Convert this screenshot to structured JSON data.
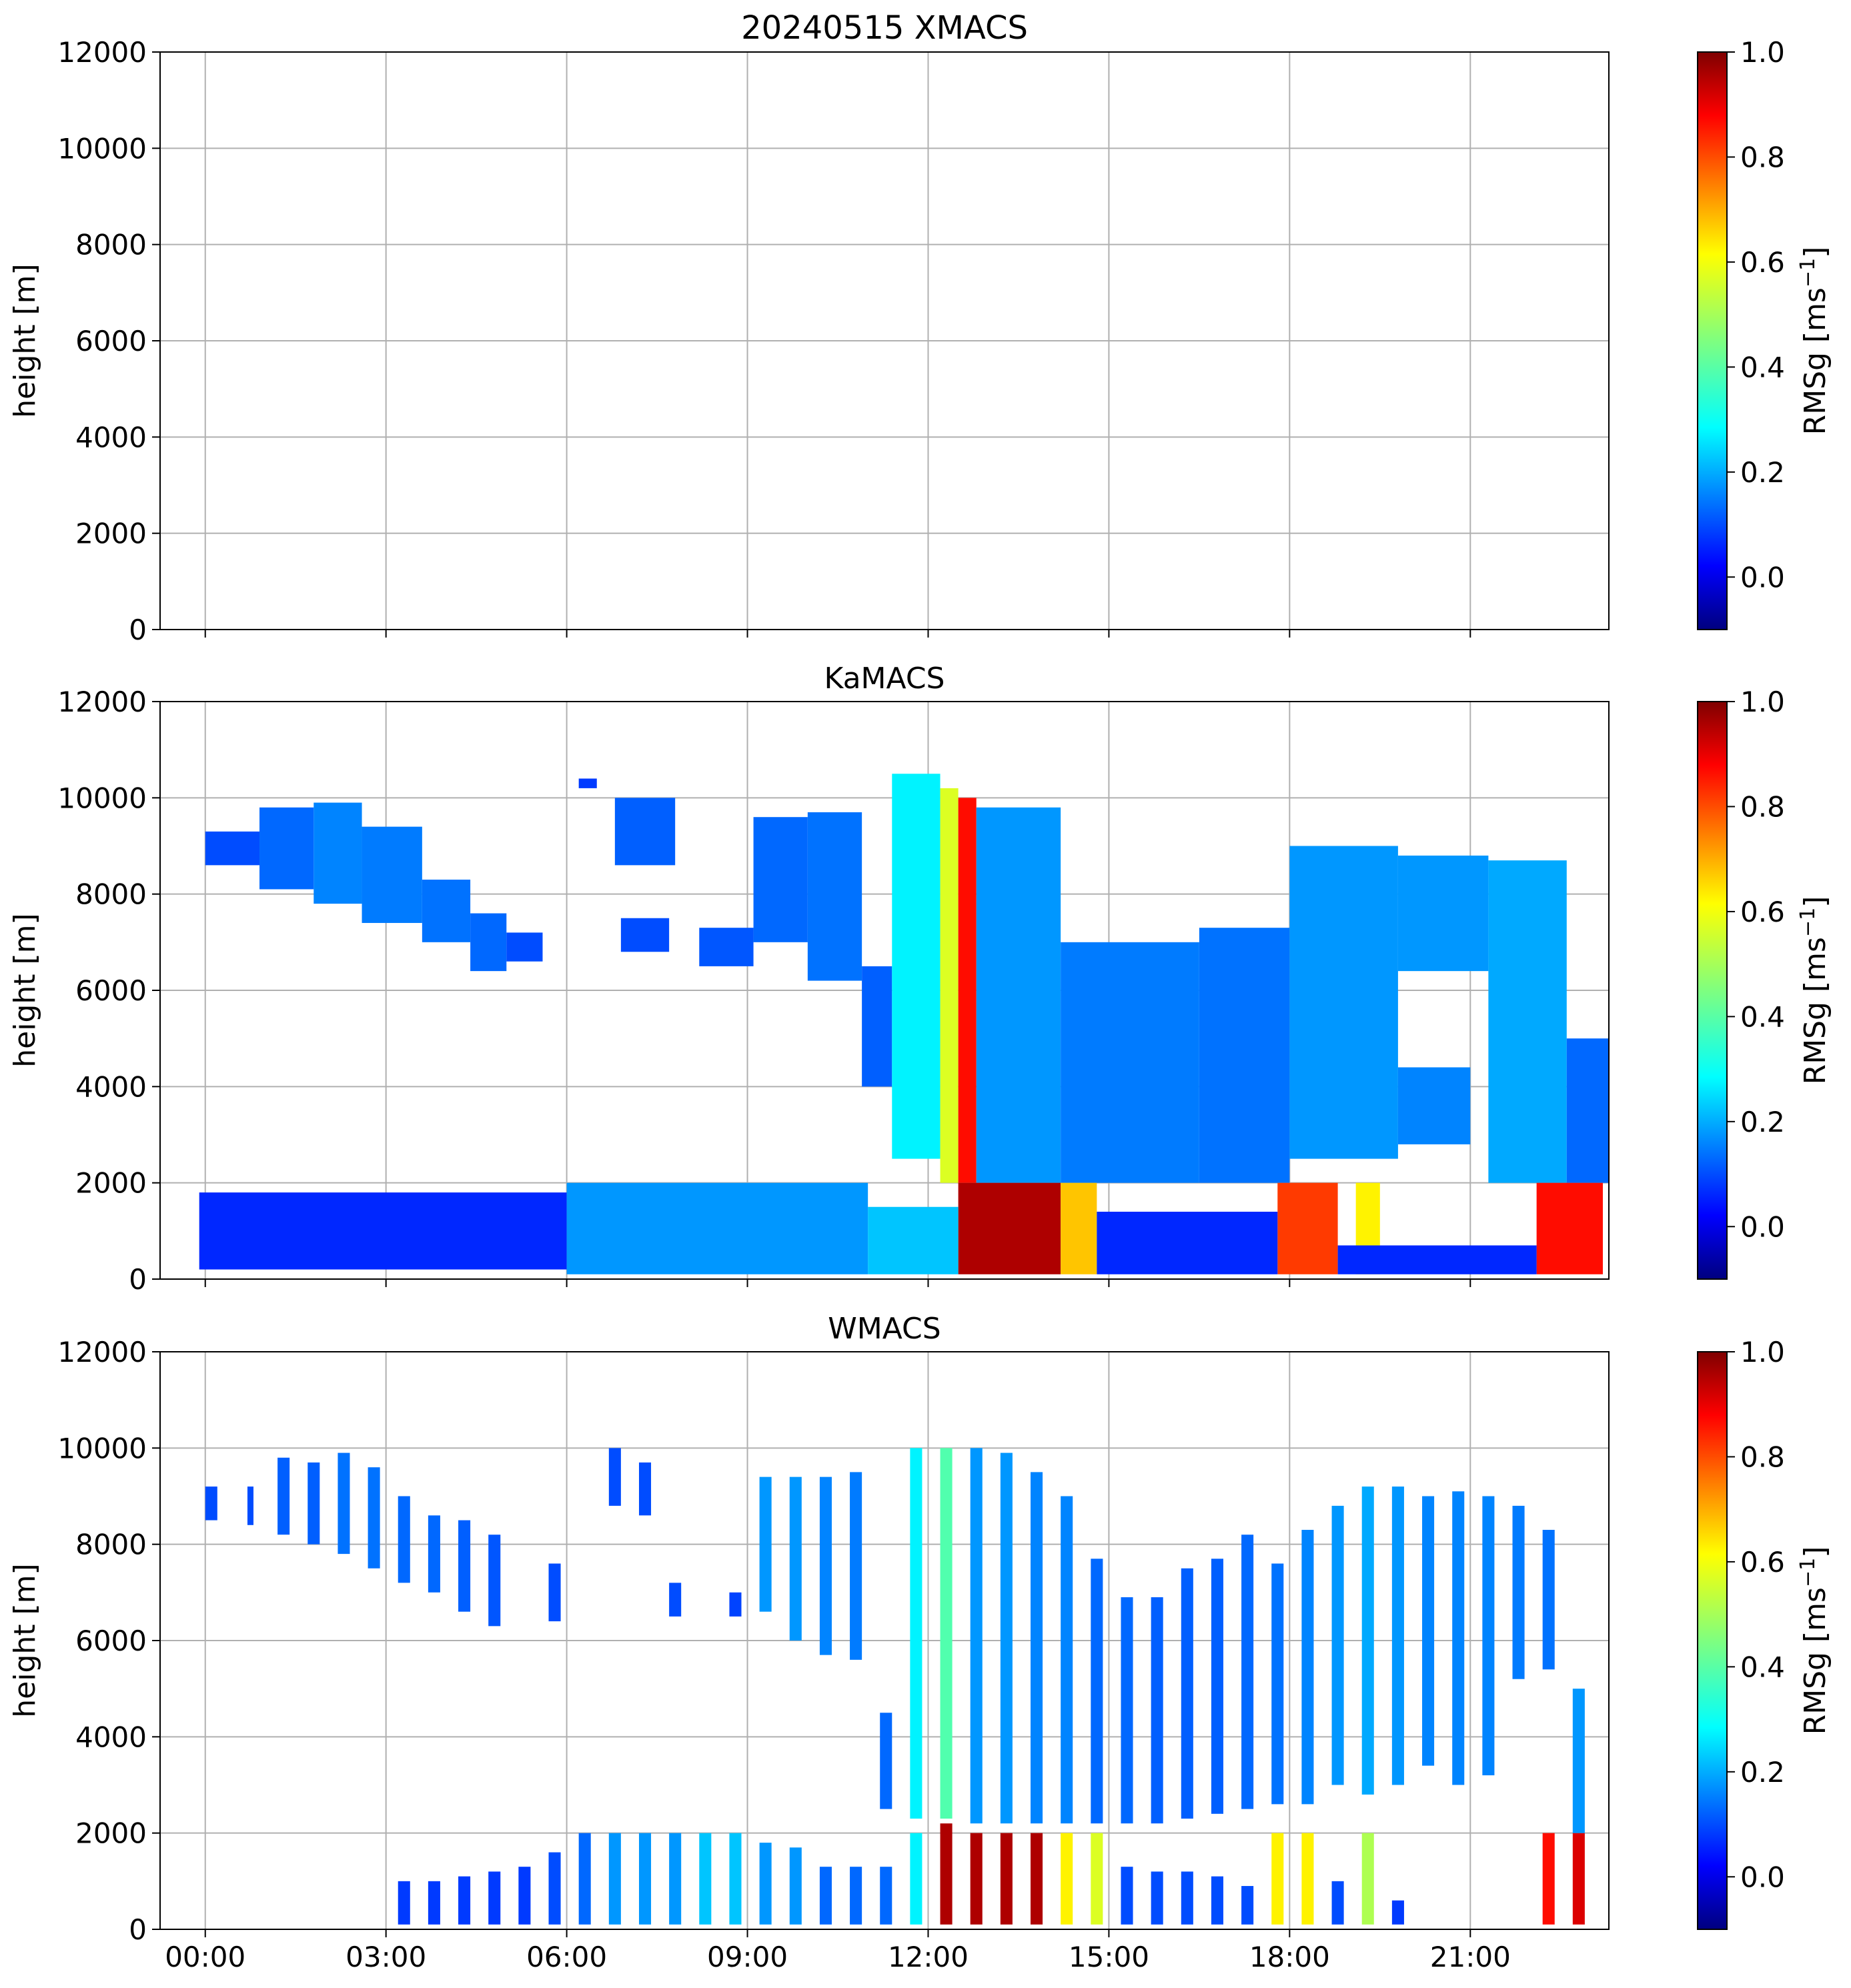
{
  "chart_data": {
    "type": "heatmap",
    "figure_title": "20240515 XMACS",
    "shared_x": {
      "ticks": [
        "00:00",
        "03:00",
        "06:00",
        "09:00",
        "12:00",
        "15:00",
        "18:00",
        "21:00"
      ],
      "tick_hours": [
        0,
        3,
        6,
        9,
        12,
        15,
        18,
        21
      ],
      "range_hours": [
        -0.75,
        23.3
      ]
    },
    "colorbar": {
      "label": "RMSg [ms",
      "label_exp": "−1",
      "label_close": "]",
      "ticks": [
        "0.0",
        "0.2",
        "0.4",
        "0.6",
        "0.8",
        "1.0"
      ],
      "tick_values": [
        0.0,
        0.2,
        0.4,
        0.6,
        0.8,
        1.0
      ],
      "range": [
        -0.1,
        1.0
      ],
      "colormap": "jet"
    },
    "panels": [
      {
        "title": "20240515 XMACS",
        "ylabel": "height [m]",
        "yticks": [
          "0",
          "2000",
          "4000",
          "6000",
          "8000",
          "10000",
          "12000"
        ],
        "ylim": [
          0,
          12000
        ],
        "data": []
      },
      {
        "title": "KaMACS",
        "ylabel": "height [m]",
        "yticks": [
          "0",
          "2000",
          "4000",
          "6000",
          "8000",
          "10000",
          "12000"
        ],
        "ylim": [
          0,
          12000
        ],
        "data": [
          {
            "t0": 0.0,
            "t1": 0.9,
            "h0": 8600,
            "h1": 9300,
            "v": 0.12
          },
          {
            "t0": 0.9,
            "t1": 1.8,
            "h0": 8100,
            "h1": 9800,
            "v": 0.15
          },
          {
            "t0": 1.8,
            "t1": 2.6,
            "h0": 7800,
            "h1": 9900,
            "v": 0.18
          },
          {
            "t0": 2.6,
            "t1": 3.6,
            "h0": 7400,
            "h1": 9400,
            "v": 0.17
          },
          {
            "t0": 3.6,
            "t1": 4.4,
            "h0": 7000,
            "h1": 8300,
            "v": 0.16
          },
          {
            "t0": 4.4,
            "t1": 5.0,
            "h0": 6400,
            "h1": 7600,
            "v": 0.15
          },
          {
            "t0": 5.0,
            "t1": 5.6,
            "h0": 6600,
            "h1": 7200,
            "v": 0.12
          },
          {
            "t0": 6.2,
            "t1": 6.5,
            "h0": 10200,
            "h1": 10400,
            "v": 0.1
          },
          {
            "t0": 6.8,
            "t1": 7.8,
            "h0": 8600,
            "h1": 10000,
            "v": 0.14
          },
          {
            "t0": 6.9,
            "t1": 7.7,
            "h0": 6800,
            "h1": 7500,
            "v": 0.12
          },
          {
            "t0": 8.2,
            "t1": 9.1,
            "h0": 6500,
            "h1": 7300,
            "v": 0.13
          },
          {
            "t0": 9.1,
            "t1": 10.0,
            "h0": 7000,
            "h1": 9600,
            "v": 0.15
          },
          {
            "t0": 10.0,
            "t1": 10.9,
            "h0": 6200,
            "h1": 9700,
            "v": 0.16
          },
          {
            "t0": 10.9,
            "t1": 11.4,
            "h0": 4000,
            "h1": 6500,
            "v": 0.14
          },
          {
            "t0": 11.4,
            "t1": 12.2,
            "h0": 2500,
            "h1": 10500,
            "v": 0.3
          },
          {
            "t0": 12.2,
            "t1": 12.5,
            "h0": 2000,
            "h1": 10200,
            "v": 0.55
          },
          {
            "t0": 12.5,
            "t1": 12.8,
            "h0": 2000,
            "h1": 10000,
            "v": 0.85
          },
          {
            "t0": 12.8,
            "t1": 14.2,
            "h0": 2000,
            "h1": 9800,
            "v": 0.2
          },
          {
            "t0": 14.2,
            "t1": 16.5,
            "h0": 2000,
            "h1": 7000,
            "v": 0.17
          },
          {
            "t0": 16.5,
            "t1": 18.0,
            "h0": 2000,
            "h1": 7300,
            "v": 0.16
          },
          {
            "t0": 18.0,
            "t1": 19.8,
            "h0": 2500,
            "h1": 9000,
            "v": 0.2
          },
          {
            "t0": 19.8,
            "t1": 21.3,
            "h0": 6400,
            "h1": 8800,
            "v": 0.2
          },
          {
            "t0": 21.3,
            "t1": 22.6,
            "h0": 2000,
            "h1": 8700,
            "v": 0.22
          },
          {
            "t0": 19.8,
            "t1": 21.0,
            "h0": 2800,
            "h1": 4400,
            "v": 0.18
          },
          {
            "t0": 22.6,
            "t1": 23.3,
            "h0": 2000,
            "h1": 5000,
            "v": 0.15
          },
          {
            "t0": 12.5,
            "t1": 14.2,
            "h0": 100,
            "h1": 2000,
            "v": 0.95
          },
          {
            "t0": 14.2,
            "t1": 14.8,
            "h0": 100,
            "h1": 2000,
            "v": 0.65
          },
          {
            "t0": 17.8,
            "t1": 18.8,
            "h0": 100,
            "h1": 2000,
            "v": 0.8
          },
          {
            "t0": 19.1,
            "t1": 19.5,
            "h0": 100,
            "h1": 2000,
            "v": 0.6
          },
          {
            "t0": 22.1,
            "t1": 23.2,
            "h0": 100,
            "h1": 2000,
            "v": 0.85
          },
          {
            "t0": -0.1,
            "t1": 6.0,
            "h0": 200,
            "h1": 1800,
            "v": 0.08
          },
          {
            "t0": 6.0,
            "t1": 11.0,
            "h0": 100,
            "h1": 2000,
            "v": 0.2
          },
          {
            "t0": 11.0,
            "t1": 12.5,
            "h0": 100,
            "h1": 1500,
            "v": 0.25
          },
          {
            "t0": 14.8,
            "t1": 17.8,
            "h0": 100,
            "h1": 1400,
            "v": 0.08
          },
          {
            "t0": 18.8,
            "t1": 22.1,
            "h0": 100,
            "h1": 700,
            "v": 0.08
          }
        ]
      },
      {
        "title": "WMACS",
        "ylabel": "height [m]",
        "yticks": [
          "0",
          "2000",
          "4000",
          "6000",
          "8000",
          "10000",
          "12000"
        ],
        "ylim": [
          0,
          12000
        ],
        "xticks": [
          "00:00",
          "03:00",
          "06:00",
          "09:00",
          "12:00",
          "15:00",
          "18:00",
          "21:00"
        ],
        "data": [
          {
            "t0": 0.0,
            "t1": 0.2,
            "h0": 8500,
            "h1": 9200,
            "v": 0.12
          },
          {
            "t0": 0.7,
            "t1": 0.8,
            "h0": 8400,
            "h1": 9200,
            "v": 0.12
          },
          {
            "t0": 1.2,
            "t1": 1.4,
            "h0": 8200,
            "h1": 9800,
            "v": 0.14
          },
          {
            "t0": 1.7,
            "t1": 1.9,
            "h0": 8000,
            "h1": 9700,
            "v": 0.14
          },
          {
            "t0": 2.2,
            "t1": 2.4,
            "h0": 7800,
            "h1": 9900,
            "v": 0.16
          },
          {
            "t0": 2.7,
            "t1": 2.9,
            "h0": 7500,
            "h1": 9600,
            "v": 0.16
          },
          {
            "t0": 3.2,
            "t1": 3.4,
            "h0": 7200,
            "h1": 9000,
            "v": 0.15
          },
          {
            "t0": 3.7,
            "t1": 3.9,
            "h0": 7000,
            "h1": 8600,
            "v": 0.15
          },
          {
            "t0": 4.2,
            "t1": 4.4,
            "h0": 6600,
            "h1": 8500,
            "v": 0.14
          },
          {
            "t0": 4.7,
            "t1": 4.9,
            "h0": 6300,
            "h1": 8200,
            "v": 0.13
          },
          {
            "t0": 5.7,
            "t1": 5.9,
            "h0": 6400,
            "h1": 7600,
            "v": 0.12
          },
          {
            "t0": 6.7,
            "t1": 6.9,
            "h0": 8800,
            "h1": 10000,
            "v": 0.12
          },
          {
            "t0": 7.2,
            "t1": 7.4,
            "h0": 8600,
            "h1": 9700,
            "v": 0.12
          },
          {
            "t0": 7.7,
            "t1": 7.9,
            "h0": 6500,
            "h1": 7200,
            "v": 0.12
          },
          {
            "t0": 8.7,
            "t1": 8.9,
            "h0": 6500,
            "h1": 7000,
            "v": 0.11
          },
          {
            "t0": 9.2,
            "t1": 9.4,
            "h0": 6600,
            "h1": 9400,
            "v": 0.2
          },
          {
            "t0": 9.7,
            "t1": 9.9,
            "h0": 6000,
            "h1": 9400,
            "v": 0.2
          },
          {
            "t0": 10.2,
            "t1": 10.4,
            "h0": 5700,
            "h1": 9400,
            "v": 0.18
          },
          {
            "t0": 10.7,
            "t1": 10.9,
            "h0": 5600,
            "h1": 9500,
            "v": 0.17
          },
          {
            "t0": 11.2,
            "t1": 11.4,
            "h0": 2500,
            "h1": 4500,
            "v": 0.15
          },
          {
            "t0": 11.7,
            "t1": 11.9,
            "h0": 2300,
            "h1": 10000,
            "v": 0.3
          },
          {
            "t0": 12.2,
            "t1": 12.4,
            "h0": 2300,
            "h1": 10000,
            "v": 0.4
          },
          {
            "t0": 12.7,
            "t1": 12.9,
            "h0": 2200,
            "h1": 10000,
            "v": 0.2
          },
          {
            "t0": 13.2,
            "t1": 13.4,
            "h0": 2200,
            "h1": 9900,
            "v": 0.2
          },
          {
            "t0": 13.7,
            "t1": 13.9,
            "h0": 2200,
            "h1": 9500,
            "v": 0.18
          },
          {
            "t0": 14.2,
            "t1": 14.4,
            "h0": 2200,
            "h1": 9000,
            "v": 0.18
          },
          {
            "t0": 14.7,
            "t1": 14.9,
            "h0": 2200,
            "h1": 7700,
            "v": 0.15
          },
          {
            "t0": 15.2,
            "t1": 15.4,
            "h0": 2200,
            "h1": 6900,
            "v": 0.15
          },
          {
            "t0": 15.7,
            "t1": 15.9,
            "h0": 2200,
            "h1": 6900,
            "v": 0.14
          },
          {
            "t0": 16.2,
            "t1": 16.4,
            "h0": 2300,
            "h1": 7500,
            "v": 0.14
          },
          {
            "t0": 16.7,
            "t1": 16.9,
            "h0": 2400,
            "h1": 7700,
            "v": 0.14
          },
          {
            "t0": 17.2,
            "t1": 17.4,
            "h0": 2500,
            "h1": 8200,
            "v": 0.15
          },
          {
            "t0": 17.7,
            "t1": 17.9,
            "h0": 2600,
            "h1": 7600,
            "v": 0.16
          },
          {
            "t0": 18.2,
            "t1": 18.4,
            "h0": 2600,
            "h1": 8300,
            "v": 0.18
          },
          {
            "t0": 18.7,
            "t1": 18.9,
            "h0": 3000,
            "h1": 8800,
            "v": 0.2
          },
          {
            "t0": 19.2,
            "t1": 19.4,
            "h0": 2800,
            "h1": 9200,
            "v": 0.22
          },
          {
            "t0": 19.7,
            "t1": 19.9,
            "h0": 3000,
            "h1": 9200,
            "v": 0.2
          },
          {
            "t0": 20.2,
            "t1": 20.4,
            "h0": 3400,
            "h1": 9000,
            "v": 0.18
          },
          {
            "t0": 20.7,
            "t1": 20.9,
            "h0": 3000,
            "h1": 9100,
            "v": 0.18
          },
          {
            "t0": 21.2,
            "t1": 21.4,
            "h0": 3200,
            "h1": 9000,
            "v": 0.18
          },
          {
            "t0": 21.7,
            "t1": 21.9,
            "h0": 5200,
            "h1": 8800,
            "v": 0.17
          },
          {
            "t0": 22.2,
            "t1": 22.4,
            "h0": 5400,
            "h1": 8300,
            "v": 0.16
          },
          {
            "t0": 12.2,
            "t1": 12.4,
            "h0": 100,
            "h1": 2200,
            "v": 0.95
          },
          {
            "t0": 12.7,
            "t1": 12.9,
            "h0": 100,
            "h1": 2000,
            "v": 0.95
          },
          {
            "t0": 13.2,
            "t1": 13.4,
            "h0": 100,
            "h1": 2000,
            "v": 0.95
          },
          {
            "t0": 13.7,
            "t1": 13.9,
            "h0": 100,
            "h1": 2000,
            "v": 0.95
          },
          {
            "t0": 14.2,
            "t1": 14.4,
            "h0": 100,
            "h1": 2000,
            "v": 0.6
          },
          {
            "t0": 14.7,
            "t1": 14.9,
            "h0": 100,
            "h1": 2000,
            "v": 0.55
          },
          {
            "t0": 17.7,
            "t1": 17.9,
            "h0": 100,
            "h1": 2000,
            "v": 0.6
          },
          {
            "t0": 18.2,
            "t1": 18.4,
            "h0": 100,
            "h1": 2000,
            "v": 0.6
          },
          {
            "t0": 19.2,
            "t1": 19.4,
            "h0": 100,
            "h1": 2000,
            "v": 0.5
          },
          {
            "t0": 22.2,
            "t1": 22.4,
            "h0": 100,
            "h1": 2000,
            "v": 0.85
          },
          {
            "t0": 22.7,
            "t1": 22.9,
            "h0": 100,
            "h1": 2000,
            "v": 0.9
          },
          {
            "t0": 22.7,
            "t1": 22.9,
            "h0": 2000,
            "h1": 5000,
            "v": 0.2
          },
          {
            "t0": 6.2,
            "t1": 6.4,
            "h0": 100,
            "h1": 2000,
            "v": 0.15
          },
          {
            "t0": 6.7,
            "t1": 6.9,
            "h0": 100,
            "h1": 2000,
            "v": 0.2
          },
          {
            "t0": 7.2,
            "t1": 7.4,
            "h0": 100,
            "h1": 2000,
            "v": 0.2
          },
          {
            "t0": 7.7,
            "t1": 7.9,
            "h0": 100,
            "h1": 2000,
            "v": 0.2
          },
          {
            "t0": 8.2,
            "t1": 8.4,
            "h0": 100,
            "h1": 2000,
            "v": 0.25
          },
          {
            "t0": 8.7,
            "t1": 8.9,
            "h0": 100,
            "h1": 2000,
            "v": 0.25
          },
          {
            "t0": 9.2,
            "t1": 9.4,
            "h0": 100,
            "h1": 1800,
            "v": 0.2
          },
          {
            "t0": 9.7,
            "t1": 9.9,
            "h0": 100,
            "h1": 1700,
            "v": 0.2
          },
          {
            "t0": 10.2,
            "t1": 10.4,
            "h0": 100,
            "h1": 1300,
            "v": 0.15
          },
          {
            "t0": 10.7,
            "t1": 10.9,
            "h0": 100,
            "h1": 1300,
            "v": 0.15
          },
          {
            "t0": 11.2,
            "t1": 11.4,
            "h0": 100,
            "h1": 1300,
            "v": 0.15
          },
          {
            "t0": 11.7,
            "t1": 11.9,
            "h0": 100,
            "h1": 2000,
            "v": 0.3
          },
          {
            "t0": 3.2,
            "t1": 3.4,
            "h0": 100,
            "h1": 1000,
            "v": 0.1
          },
          {
            "t0": 3.7,
            "t1": 3.9,
            "h0": 100,
            "h1": 1000,
            "v": 0.1
          },
          {
            "t0": 4.2,
            "t1": 4.4,
            "h0": 100,
            "h1": 1100,
            "v": 0.1
          },
          {
            "t0": 4.7,
            "t1": 4.9,
            "h0": 100,
            "h1": 1200,
            "v": 0.1
          },
          {
            "t0": 5.2,
            "t1": 5.4,
            "h0": 100,
            "h1": 1300,
            "v": 0.1
          },
          {
            "t0": 5.7,
            "t1": 5.9,
            "h0": 100,
            "h1": 1600,
            "v": 0.12
          },
          {
            "t0": 15.2,
            "t1": 15.4,
            "h0": 100,
            "h1": 1300,
            "v": 0.12
          },
          {
            "t0": 15.7,
            "t1": 15.9,
            "h0": 100,
            "h1": 1200,
            "v": 0.12
          },
          {
            "t0": 16.2,
            "t1": 16.4,
            "h0": 100,
            "h1": 1200,
            "v": 0.12
          },
          {
            "t0": 16.7,
            "t1": 16.9,
            "h0": 100,
            "h1": 1100,
            "v": 0.12
          },
          {
            "t0": 17.2,
            "t1": 17.4,
            "h0": 100,
            "h1": 900,
            "v": 0.12
          },
          {
            "t0": 18.7,
            "t1": 18.9,
            "h0": 100,
            "h1": 1000,
            "v": 0.12
          },
          {
            "t0": 19.7,
            "t1": 19.9,
            "h0": 100,
            "h1": 600,
            "v": 0.1
          }
        ]
      }
    ]
  }
}
